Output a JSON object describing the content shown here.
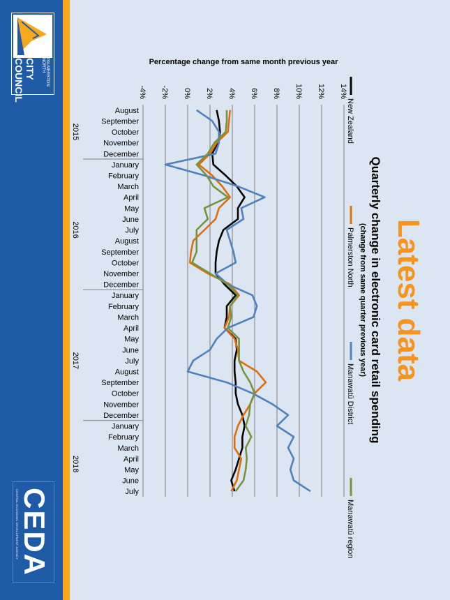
{
  "slide": {
    "title": "Latest data",
    "logos": {
      "ceda": {
        "word": "CEDA",
        "tagline": "CENTRAL ECONOMIC DEVELOPMENT AGENCY"
      },
      "pncc": {
        "line1": "PALMERSTON NORTH",
        "line2": "CITY COUNCIL"
      }
    },
    "colors": {
      "background": "#dce6f2",
      "title": "#f7941d",
      "footer": "#1f5aa6",
      "accent": "#f7a81b"
    }
  },
  "chart_data": {
    "type": "line",
    "title": "Quarterly change in electronic card retail spending",
    "subtitle": "(change from same quarter previous year)",
    "ylabel": "Percentage change from same month previous year",
    "ylim": [
      -4,
      14
    ],
    "yticks": [
      "-4%",
      "-2%",
      "0%",
      "2%",
      "4%",
      "6%",
      "8%",
      "10%",
      "12%",
      "14%"
    ],
    "grid": true,
    "legend_position": "top",
    "categories": [
      "August",
      "September",
      "October",
      "November",
      "December",
      "January",
      "February",
      "March",
      "April",
      "May",
      "June",
      "July",
      "August",
      "September",
      "October",
      "November",
      "December",
      "January",
      "February",
      "March",
      "April",
      "May",
      "June",
      "July",
      "August",
      "September",
      "October",
      "November",
      "December",
      "January",
      "February",
      "March",
      "April",
      "May",
      "June",
      "July"
    ],
    "year_labels": [
      {
        "year": "2015",
        "center_index": 2
      },
      {
        "year": "2016",
        "center_index": 11
      },
      {
        "year": "2017",
        "center_index": 23
      },
      {
        "year": "2018",
        "center_index": 32.5
      }
    ],
    "year_dividers": [
      4.5,
      16.5,
      28.5
    ],
    "series": [
      {
        "name": "New Zealand",
        "color": "#000000",
        "values": [
          2.6,
          2.8,
          2.9,
          2.7,
          2.2,
          2.3,
          3.4,
          4.4,
          5.1,
          4.5,
          4.5,
          3.2,
          2.8,
          2.6,
          2.5,
          2.5,
          3.3,
          4.3,
          3.5,
          3.5,
          3.3,
          4.3,
          4.4,
          4.2,
          4.2,
          4.3,
          4.3,
          4.5,
          4.9,
          5.1,
          4.9,
          4.9,
          4.6,
          4.3,
          3.9,
          4.2
        ]
      },
      {
        "name": "Palmerston North",
        "color": "#e36c0a",
        "values": [
          3.8,
          3.7,
          3.6,
          2.6,
          2.0,
          1.0,
          2.2,
          3.1,
          3.8,
          2.8,
          2.5,
          1.5,
          0.5,
          0.3,
          0.2,
          1.8,
          3.8,
          4.6,
          3.8,
          3.7,
          3.3,
          4.2,
          4.5,
          4.6,
          6.2,
          7.0,
          6.0,
          5.6,
          5.0,
          4.5,
          4.2,
          4.2,
          4.8,
          4.6,
          4.4,
          3.9
        ]
      },
      {
        "name": "Manawatū District",
        "color": "#4f81bd",
        "values": [
          0.8,
          2.2,
          2.8,
          2.8,
          2.5,
          -2.0,
          1.5,
          4.5,
          6.9,
          4.8,
          5.0,
          3.5,
          3.8,
          4.1,
          4.3,
          2.5,
          3.6,
          5.8,
          6.2,
          5.9,
          3.6,
          2.6,
          2.0,
          0.5,
          0.0,
          3.5,
          5.8,
          7.6,
          9.0,
          8.0,
          9.5,
          9.0,
          9.5,
          9.2,
          9.5,
          11.0
        ]
      },
      {
        "name": "Manawatū region",
        "color": "#77933c",
        "values": [
          3.5,
          3.5,
          3.4,
          2.4,
          1.8,
          0.8,
          1.7,
          2.3,
          3.6,
          1.5,
          1.8,
          0.8,
          0.8,
          0.8,
          0.4,
          2.0,
          3.6,
          4.5,
          3.8,
          3.9,
          3.6,
          4.6,
          4.6,
          4.6,
          5.0,
          5.6,
          6.0,
          5.6,
          5.5,
          5.2,
          5.7,
          5.2,
          5.3,
          5.2,
          5.0,
          4.3
        ]
      }
    ]
  }
}
